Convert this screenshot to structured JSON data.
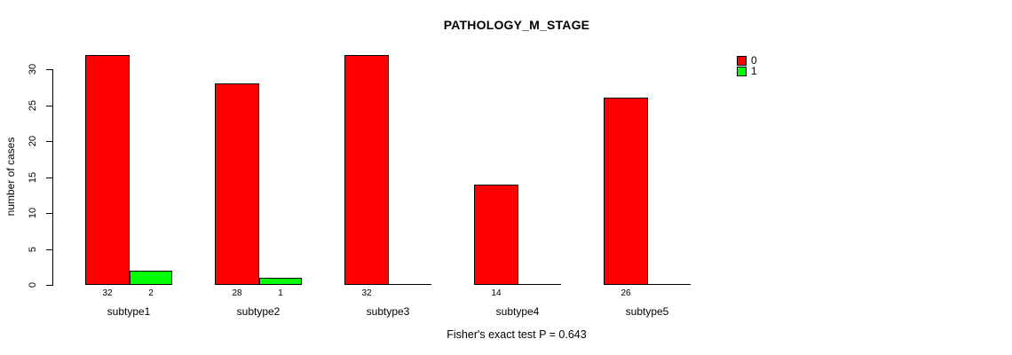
{
  "title": "PATHOLOGY_M_STAGE",
  "footer": "Fisher's exact test P = 0.643",
  "y_axis": {
    "label": "number of cases"
  },
  "legend": {
    "items": [
      {
        "label": "0",
        "color": "#FF0000"
      },
      {
        "label": "1",
        "color": "#00FF00"
      }
    ]
  },
  "chart_data": {
    "type": "bar",
    "title": "PATHOLOGY_M_STAGE",
    "categories": [
      "subtype1",
      "subtype2",
      "subtype3",
      "subtype4",
      "subtype5"
    ],
    "series": [
      {
        "name": "0",
        "color": "#FF0000",
        "values": [
          32,
          28,
          32,
          14,
          26
        ]
      },
      {
        "name": "1",
        "color": "#00FF00",
        "values": [
          2,
          1,
          0,
          0,
          0
        ]
      }
    ],
    "ylabel": "number of cases",
    "xlabel": "",
    "yticks": [
      0,
      5,
      10,
      15,
      20,
      25,
      30
    ],
    "ylim": [
      0,
      32
    ],
    "grid": false,
    "legend_position": "right-inside-top",
    "bar_value_labels_shown_for_nonzero_only": true,
    "annotation": "Fisher's exact test P = 0.643"
  }
}
